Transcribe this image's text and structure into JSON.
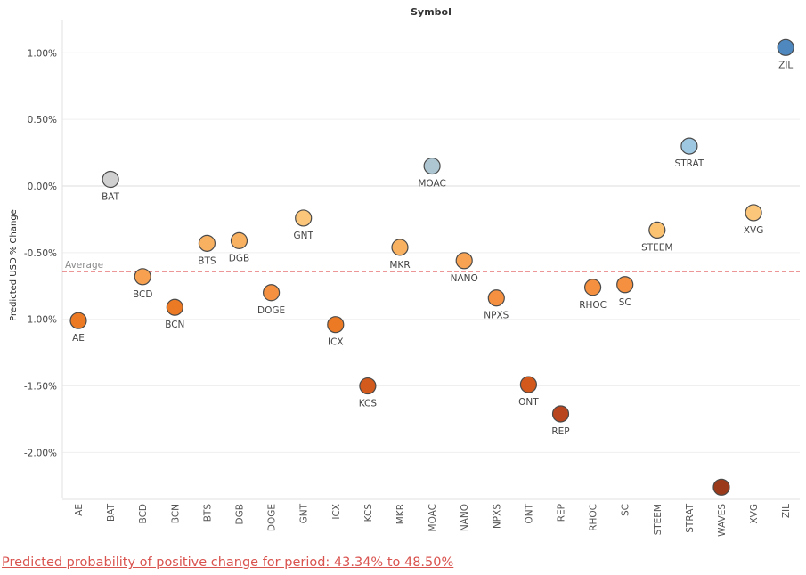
{
  "chart_data": {
    "type": "scatter",
    "title": "Symbol",
    "xlabel": "",
    "ylabel": "Predicted USD % Change",
    "ylim": [
      -2.35,
      1.25
    ],
    "yticks": [
      1.0,
      0.5,
      0.0,
      -0.5,
      -1.0,
      -1.5,
      -2.0
    ],
    "ytick_labels": [
      "1.00%",
      "0.50%",
      "0.00%",
      "-0.50%",
      "-1.00%",
      "-1.50%",
      "-2.00%"
    ],
    "grid": true,
    "reference_line": {
      "label": "Average",
      "value": -0.64,
      "color": "#e0575b"
    },
    "categories": [
      "AE",
      "BAT",
      "BCD",
      "BCN",
      "BTS",
      "DGB",
      "DOGE",
      "GNT",
      "ICX",
      "KCS",
      "MKR",
      "MOAC",
      "NANO",
      "NPXS",
      "ONT",
      "REP",
      "RHOC",
      "SC",
      "STEEM",
      "STRAT",
      "WAVES",
      "XVG",
      "ZIL"
    ],
    "values": [
      -1.01,
      0.05,
      -0.68,
      -0.91,
      -0.43,
      -0.41,
      -0.8,
      -0.24,
      -1.04,
      -1.5,
      -0.46,
      0.15,
      -0.56,
      -0.84,
      -1.49,
      -1.71,
      -0.76,
      -0.74,
      -0.33,
      0.3,
      -2.26,
      -0.2,
      1.04
    ],
    "point_labels": [
      "AE",
      "BAT",
      "BCD",
      "BCN",
      "BTS",
      "DGB",
      "DOGE",
      "GNT",
      "ICX",
      "KCS",
      "MKR",
      "MOAC",
      "NANO",
      "NPXS",
      "ONT",
      "REP",
      "RHOC",
      "SC",
      "STEEM",
      "STRAT",
      "",
      "XVG",
      "ZIL"
    ],
    "colors": [
      "#ec7a24",
      "#cfd0cf",
      "#f6a050",
      "#ec7a24",
      "#f8b061",
      "#f8b061",
      "#f49040",
      "#fbc67a",
      "#ec7a24",
      "#d25a1c",
      "#f8b061",
      "#aec6d1",
      "#f8a353",
      "#f49040",
      "#d2581c",
      "#b8451d",
      "#f49040",
      "#f49040",
      "#fbc272",
      "#9ec7e2",
      "#9b3a1a",
      "#fbc67a",
      "#4e88bf"
    ]
  },
  "footer": {
    "text": "Predicted probability of positive change for period:  43.34% to 48.50%"
  }
}
